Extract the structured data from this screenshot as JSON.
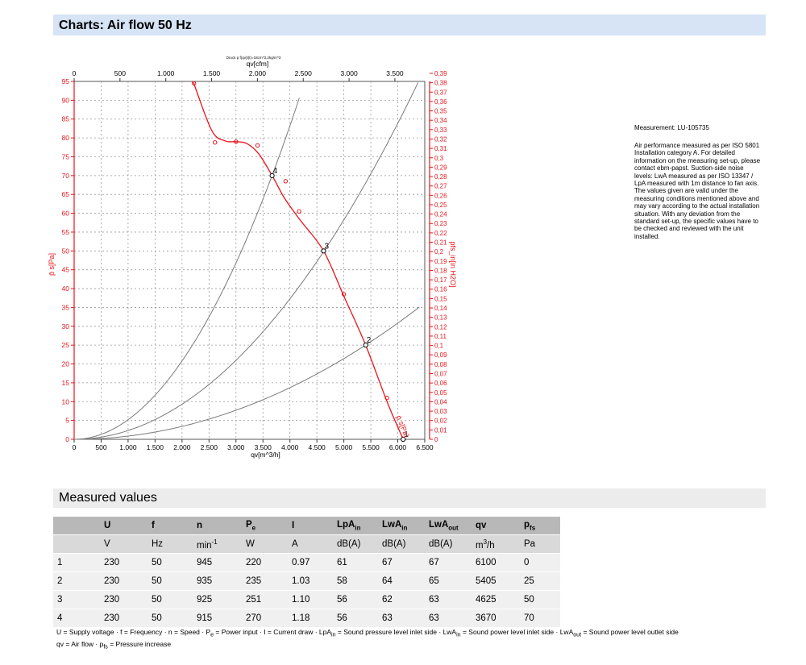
{
  "header": {
    "title": "Charts: Air flow 50 Hz"
  },
  "measured_header": {
    "title": "Measured values"
  },
  "note": {
    "measurement_id": "Measurement: LU-105735",
    "lines": [
      "Air performance measured as per ISO 5801",
      "Installation category A. For detailed",
      "information on the measuring set-up, please",
      "contact ebm-papst. Suction-side noise",
      "levels: LwA measured as per ISO 13347 /",
      "LpA measured with 1m distance to fan axis.",
      "The values given are valid under the",
      "measuring conditions mentioned above and",
      "may vary according to the actual installation",
      "situation. With any deviation from the",
      "standard set-up, the specific values have to",
      "be checked and reviewed with the unit",
      "installed."
    ]
  },
  "chart_data": {
    "type": "line",
    "subtitle": "Druck p f(qv)t(t)=18cm^3,2kg/m^3",
    "xlabel": "qv[m^3/h]",
    "x2label": "qv[cfm]",
    "ylabel": "p̄ s[Pa]",
    "y2label": "pfs_in[in H2O]",
    "xlim": [
      0,
      6500
    ],
    "ylim": [
      0,
      95
    ],
    "x2lim": [
      0,
      3826
    ],
    "y2lim": [
      0,
      0.3814
    ],
    "x_ticks": [
      "0",
      "500",
      "1.000",
      "1.500",
      "2.000",
      "2.500",
      "3.000",
      "3.500",
      "4.000",
      "4.500",
      "5.000",
      "5.500",
      "6.000",
      "6.500"
    ],
    "x2_ticks": [
      "0",
      "500",
      "1.000",
      "1.500",
      "2.000",
      "2.500",
      "3.000",
      "3.500"
    ],
    "y_ticks": [
      "0",
      "5",
      "10",
      "15",
      "20",
      "25",
      "30",
      "35",
      "40",
      "45",
      "50",
      "55",
      "60",
      "65",
      "70",
      "75",
      "80",
      "85",
      "90",
      "95"
    ],
    "y2_ticks": [
      "0",
      "0,01",
      "0,02",
      "0,03",
      "0,04",
      "0,05",
      "0,06",
      "0,07",
      "0,08",
      "0,09",
      "0,1",
      "0,11",
      "0,12",
      "0,13",
      "0,14",
      "0,15",
      "0,16",
      "0,17",
      "0,18",
      "0,19",
      "0,2",
      "0,21",
      "0,22",
      "0,23",
      "0,24",
      "0,25",
      "0,26",
      "0,27",
      "0,28",
      "0,29",
      "0,3",
      "0,31",
      "0,32",
      "0,33",
      "0,34",
      "0,35",
      "0,36",
      "0,37",
      "0,38",
      "0,39"
    ],
    "curve_label": "p̄ s[Pa]",
    "grid": true,
    "fan_curve": {
      "color": "#e8141b",
      "x": [
        2210,
        2550,
        2800,
        3000,
        3200,
        3420,
        3670,
        3900,
        4200,
        4625,
        5000,
        5405,
        5800,
        6100
      ],
      "y": [
        94.8,
        82,
        79.2,
        79,
        78.5,
        75.8,
        70,
        64,
        58,
        50,
        38,
        25,
        10,
        0
      ],
      "markers": [
        {
          "x": 2220,
          "y": 94.5
        },
        {
          "x": 2610,
          "y": 78.8
        },
        {
          "x": 3000,
          "y": 79.0
        },
        {
          "x": 3400,
          "y": 78.0
        },
        {
          "x": 3920,
          "y": 68.5
        },
        {
          "x": 4170,
          "y": 60.5
        },
        {
          "x": 5000,
          "y": 38.5
        },
        {
          "x": 5800,
          "y": 11.0
        }
      ]
    },
    "system_curves": {
      "color": "#7a7a7a",
      "series": [
        {
          "k": 5.2e-06,
          "x_end": 4180
        },
        {
          "k": 2.33e-06,
          "x_end": 6400
        },
        {
          "k": 8.57e-07,
          "x_end": 6400
        }
      ]
    },
    "operating_points": [
      {
        "label": "4",
        "x": 3670,
        "y": 70
      },
      {
        "label": "3",
        "x": 4625,
        "y": 50
      },
      {
        "label": "2",
        "x": 5405,
        "y": 25
      },
      {
        "label": "1",
        "x": 6100,
        "y": 0
      }
    ]
  },
  "table": {
    "header": [
      {
        "main": "",
        "sub": ""
      },
      {
        "main": "U",
        "sub": ""
      },
      {
        "main": "f",
        "sub": ""
      },
      {
        "main": "n",
        "sub": ""
      },
      {
        "main": "P",
        "sub": "e"
      },
      {
        "main": "I",
        "sub": ""
      },
      {
        "main": "LpA",
        "sub": "in"
      },
      {
        "main": "LwA",
        "sub": "in"
      },
      {
        "main": "LwA",
        "sub": "out"
      },
      {
        "main": "qv",
        "sub": ""
      },
      {
        "main": "p",
        "sub": "fs"
      }
    ],
    "units": [
      "",
      "V",
      "Hz",
      "min",
      "W",
      "A",
      "dB(A)",
      "dB(A)",
      "dB(A)",
      "m",
      "Pa"
    ],
    "unit_sup": {
      "n": "-1",
      "qv": "3"
    },
    "unit_tail": {
      "qv": "/h"
    },
    "rows": [
      [
        "1",
        "230",
        "50",
        "945",
        "220",
        "0.97",
        "61",
        "67",
        "67",
        "6100",
        "0"
      ],
      [
        "2",
        "230",
        "50",
        "935",
        "235",
        "1.03",
        "58",
        "64",
        "65",
        "5405",
        "25"
      ],
      [
        "3",
        "230",
        "50",
        "925",
        "251",
        "1.10",
        "56",
        "62",
        "63",
        "4625",
        "50"
      ],
      [
        "4",
        "230",
        "50",
        "915",
        "270",
        "1.18",
        "56",
        "63",
        "63",
        "3670",
        "70"
      ]
    ]
  },
  "legend": {
    "parts": [
      {
        "t": "U = Supply voltage · f = Frequency · n = Speed · P"
      },
      {
        "sub": "e"
      },
      {
        "t": " = Power input · I = Current draw · LpA"
      },
      {
        "sub": "in"
      },
      {
        "t": " = Sound pressure level inlet side · LwA"
      },
      {
        "sub": "in"
      },
      {
        "t": " = Sound power level inlet side · LwA"
      },
      {
        "sub": "out"
      },
      {
        "t": " = Sound power level outlet side"
      }
    ],
    "line2_a": "qv = Air flow · p",
    "line2_sub": "fs",
    "line2_b": " = Pressure increase"
  }
}
